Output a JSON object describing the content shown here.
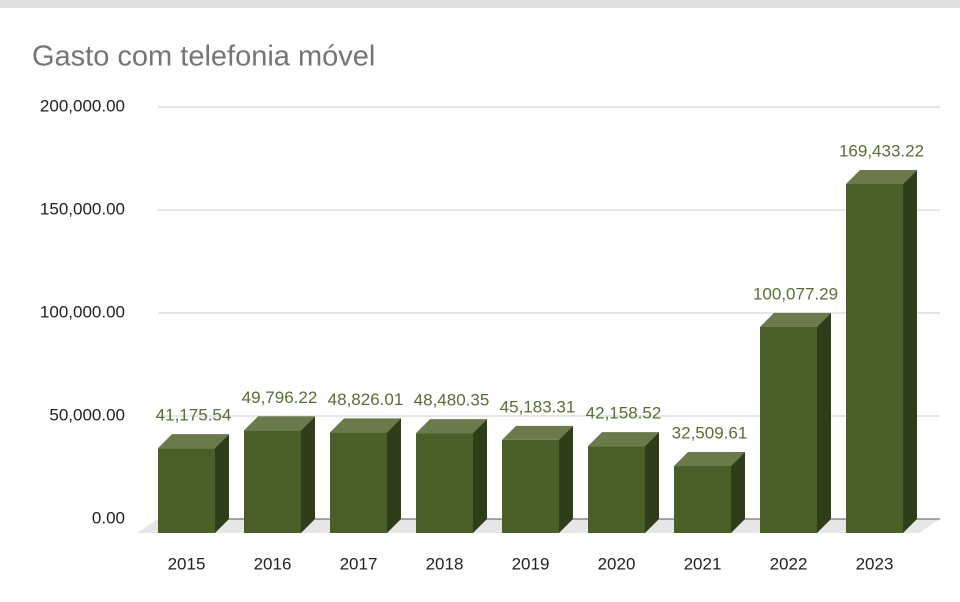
{
  "chart_data": {
    "type": "bar3d",
    "title": "Gasto com telefonia móvel",
    "categories": [
      "2015",
      "2016",
      "2017",
      "2018",
      "2019",
      "2020",
      "2021",
      "2022",
      "2023"
    ],
    "values": [
      41175.54,
      49796.22,
      48826.01,
      48480.35,
      45183.31,
      42158.52,
      32509.61,
      100077.29,
      169433.22
    ],
    "value_labels": [
      "41,175.54",
      "49,796.22",
      "48,826.01",
      "48,480.35",
      "45,183.31",
      "42,158.52",
      "32,509.61",
      "100,077.29",
      "169,433.22"
    ],
    "color": "#4a5e28",
    "ylim": [
      0,
      200000
    ],
    "yticks": [
      {
        "value": 0,
        "label": "0.00"
      },
      {
        "value": 50000,
        "label": "50,000.00"
      },
      {
        "value": 100000,
        "label": "100,000.00"
      },
      {
        "value": 150000,
        "label": "150,000.00"
      },
      {
        "value": 200000,
        "label": "200,000.00"
      }
    ],
    "grid": true
  }
}
